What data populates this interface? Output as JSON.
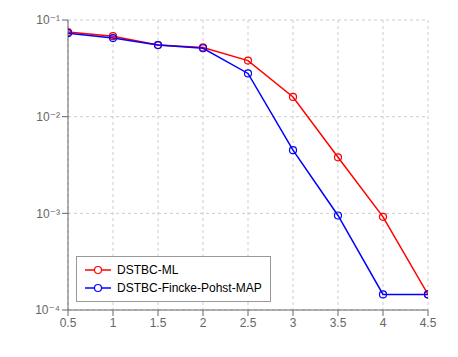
{
  "chart_data": {
    "type": "line",
    "log": "y",
    "grid": true,
    "legend": "lower left",
    "marker": "circle",
    "line_style": "solid",
    "x": [
      0.5,
      1.0,
      1.5,
      2.0,
      2.5,
      3.0,
      3.5,
      4.0,
      4.5
    ],
    "series": [
      {
        "name": "DSTBC-ML",
        "color": "#ff0000",
        "values": [
          0.075,
          0.068,
          0.055,
          0.052,
          0.038,
          0.016,
          0.0038,
          0.00092,
          0.000145
        ]
      },
      {
        "name": "DSTBC-Fincke-Pohst-MAP",
        "color": "#0000ff",
        "values": [
          0.073,
          0.065,
          0.055,
          0.051,
          0.028,
          0.0045,
          0.00095,
          0.000145,
          0.000145
        ]
      }
    ],
    "xlim": [
      0.5,
      4.5
    ],
    "xticks": [
      0.5,
      1.0,
      1.5,
      2.0,
      2.5,
      3.0,
      3.5,
      4.0,
      4.5
    ],
    "ylim": [
      0.0001,
      0.1
    ],
    "yticks": [
      {
        "value": 0.0001,
        "label": "10⁻⁴"
      },
      {
        "value": 0.001,
        "label": "10⁻³"
      },
      {
        "value": 0.01,
        "label": "10⁻²"
      },
      {
        "value": 0.1,
        "label": "10⁻¹"
      }
    ]
  }
}
